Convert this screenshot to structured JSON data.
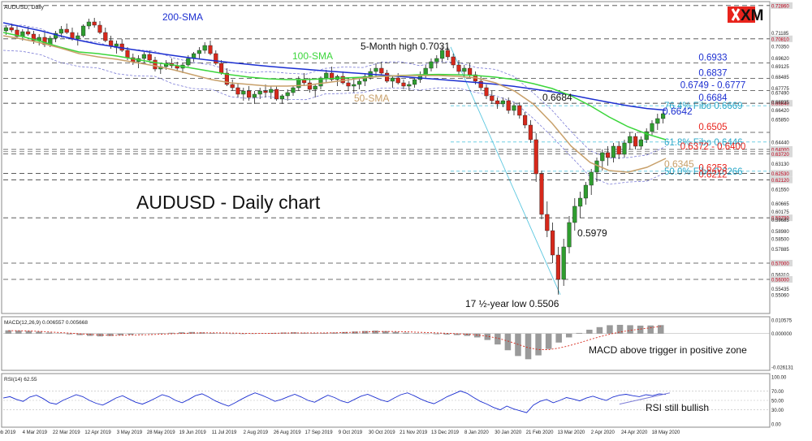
{
  "chart_data": [
    {
      "type": "candlestick",
      "symbol_label": "AUDUSD, Daily",
      "title": "AUDUSD - Daily chart",
      "ylim": [
        0.541,
        0.729
      ],
      "price_ticks": [
        "0.72860",
        "0.71185",
        "0.70810",
        "0.70350",
        "0.69620",
        "0.69125",
        "0.68485",
        "0.67775",
        "0.67490",
        "0.66840",
        "0.66935",
        "0.66420",
        "0.65850",
        "0.64440",
        "0.64000",
        "0.63720",
        "0.63130",
        "0.62530",
        "0.62120",
        "0.61550",
        "0.60665",
        "0.60175",
        "0.59790",
        "0.59685",
        "0.58980",
        "0.58500",
        "0.57885",
        "0.57000",
        "0.56310",
        "0.56000",
        "0.55435",
        "0.55060"
      ],
      "price_ticks_red": [
        "0.72860",
        "0.70810",
        "0.66840",
        "0.64000",
        "0.63720",
        "0.62530",
        "0.62120",
        "0.59790",
        "0.57000",
        "0.56000"
      ],
      "x_ticks": [
        "8 Feb 2019",
        "4 Mar 2019",
        "22 Mar 2019",
        "12 Apr 2019",
        "3 May 2019",
        "28 May 2019",
        "19 Jun 2019",
        "11 Jul 2019",
        "2 Aug 2019",
        "26 Aug 2019",
        "17 Sep 2019",
        "9 Oct 2019",
        "30 Oct 2019",
        "21 Nov 2019",
        "13 Dec 2019",
        "8 Jan 2020",
        "30 Jan 2020",
        "21 Feb 2020",
        "13 Mar 2020",
        "2 Apr 2020",
        "24 Apr 2020",
        "18 May 2020"
      ],
      "candles_ohlc": [
        [
          0.713,
          0.7165,
          0.7105,
          0.715
        ],
        [
          0.715,
          0.7175,
          0.712,
          0.7135
        ],
        [
          0.7135,
          0.716,
          0.708,
          0.7095
        ],
        [
          0.7095,
          0.714,
          0.707,
          0.7125
        ],
        [
          0.7125,
          0.7155,
          0.71,
          0.711
        ],
        [
          0.711,
          0.713,
          0.705,
          0.707
        ],
        [
          0.707,
          0.711,
          0.704,
          0.709
        ],
        [
          0.709,
          0.712,
          0.703,
          0.7045
        ],
        [
          0.7045,
          0.71,
          0.703,
          0.7085
        ],
        [
          0.7085,
          0.713,
          0.706,
          0.7115
        ],
        [
          0.7115,
          0.716,
          0.709,
          0.714
        ],
        [
          0.714,
          0.7175,
          0.711,
          0.712
        ],
        [
          0.712,
          0.715,
          0.707,
          0.708
        ],
        [
          0.708,
          0.712,
          0.704,
          0.71
        ],
        [
          0.71,
          0.717,
          0.709,
          0.716
        ],
        [
          0.716,
          0.7205,
          0.714,
          0.7185
        ],
        [
          0.7185,
          0.721,
          0.715,
          0.7165
        ],
        [
          0.7165,
          0.719,
          0.711,
          0.712
        ],
        [
          0.712,
          0.715,
          0.706,
          0.707
        ],
        [
          0.707,
          0.71,
          0.702,
          0.7035
        ],
        [
          0.7035,
          0.707,
          0.699,
          0.705
        ],
        [
          0.705,
          0.708,
          0.7,
          0.701
        ],
        [
          0.701,
          0.703,
          0.695,
          0.6965
        ],
        [
          0.6965,
          0.699,
          0.692,
          0.694
        ],
        [
          0.694,
          0.698,
          0.69,
          0.696
        ],
        [
          0.696,
          0.7,
          0.693,
          0.6985
        ],
        [
          0.6985,
          0.701,
          0.694,
          0.695
        ],
        [
          0.695,
          0.697,
          0.688,
          0.6895
        ],
        [
          0.6895,
          0.693,
          0.6865,
          0.691
        ],
        [
          0.691,
          0.695,
          0.689,
          0.693
        ],
        [
          0.693,
          0.696,
          0.69,
          0.6915
        ],
        [
          0.6915,
          0.694,
          0.688,
          0.69
        ],
        [
          0.69,
          0.693,
          0.687,
          0.692
        ],
        [
          0.692,
          0.698,
          0.691,
          0.696
        ],
        [
          0.696,
          0.7,
          0.694,
          0.699
        ],
        [
          0.699,
          0.703,
          0.696,
          0.701
        ],
        [
          0.701,
          0.706,
          0.699,
          0.704
        ],
        [
          0.704,
          0.707,
          0.698,
          0.699
        ],
        [
          0.699,
          0.701,
          0.692,
          0.693
        ],
        [
          0.693,
          0.695,
          0.686,
          0.687
        ],
        [
          0.687,
          0.69,
          0.679,
          0.68
        ],
        [
          0.68,
          0.683,
          0.676,
          0.678
        ],
        [
          0.678,
          0.681,
          0.672,
          0.674
        ],
        [
          0.674,
          0.678,
          0.67,
          0.676
        ],
        [
          0.676,
          0.679,
          0.67,
          0.672
        ],
        [
          0.672,
          0.676,
          0.668,
          0.674
        ],
        [
          0.674,
          0.678,
          0.671,
          0.676
        ],
        [
          0.676,
          0.68,
          0.672,
          0.675
        ],
        [
          0.675,
          0.679,
          0.671,
          0.677
        ],
        [
          0.677,
          0.679,
          0.67,
          0.671
        ],
        [
          0.671,
          0.674,
          0.668,
          0.673
        ],
        [
          0.673,
          0.677,
          0.67,
          0.675
        ],
        [
          0.675,
          0.679,
          0.673,
          0.678
        ],
        [
          0.678,
          0.685,
          0.676,
          0.683
        ],
        [
          0.683,
          0.687,
          0.679,
          0.681
        ],
        [
          0.681,
          0.684,
          0.675,
          0.677
        ],
        [
          0.677,
          0.68,
          0.672,
          0.679
        ],
        [
          0.679,
          0.685,
          0.677,
          0.684
        ],
        [
          0.684,
          0.689,
          0.681,
          0.687
        ],
        [
          0.687,
          0.691,
          0.682,
          0.683
        ],
        [
          0.683,
          0.686,
          0.679,
          0.685
        ],
        [
          0.685,
          0.688,
          0.68,
          0.681
        ],
        [
          0.681,
          0.684,
          0.676,
          0.679
        ],
        [
          0.679,
          0.683,
          0.675,
          0.68
        ],
        [
          0.68,
          0.684,
          0.677,
          0.682
        ],
        [
          0.682,
          0.687,
          0.679,
          0.685
        ],
        [
          0.685,
          0.69,
          0.683,
          0.688
        ],
        [
          0.688,
          0.693,
          0.685,
          0.69
        ],
        [
          0.69,
          0.694,
          0.686,
          0.687
        ],
        [
          0.687,
          0.689,
          0.681,
          0.682
        ],
        [
          0.682,
          0.685,
          0.678,
          0.684
        ],
        [
          0.684,
          0.687,
          0.68,
          0.681
        ],
        [
          0.681,
          0.683,
          0.677,
          0.679
        ],
        [
          0.679,
          0.682,
          0.676,
          0.68
        ],
        [
          0.68,
          0.684,
          0.678,
          0.683
        ],
        [
          0.683,
          0.688,
          0.681,
          0.686
        ],
        [
          0.686,
          0.692,
          0.684,
          0.69
        ],
        [
          0.69,
          0.696,
          0.688,
          0.694
        ],
        [
          0.694,
          0.698,
          0.69,
          0.696
        ],
        [
          0.696,
          0.7031,
          0.694,
          0.701
        ],
        [
          0.701,
          0.7031,
          0.695,
          0.697
        ],
        [
          0.697,
          0.699,
          0.69,
          0.692
        ],
        [
          0.692,
          0.695,
          0.686,
          0.688
        ],
        [
          0.688,
          0.692,
          0.685,
          0.69
        ],
        [
          0.69,
          0.693,
          0.684,
          0.686
        ],
        [
          0.686,
          0.688,
          0.68,
          0.682
        ],
        [
          0.682,
          0.685,
          0.676,
          0.678
        ],
        [
          0.678,
          0.68,
          0.671,
          0.673
        ],
        [
          0.673,
          0.676,
          0.668,
          0.67
        ],
        [
          0.67,
          0.672,
          0.665,
          0.668
        ],
        [
          0.668,
          0.672,
          0.666,
          0.67
        ],
        [
          0.67,
          0.672,
          0.662,
          0.664
        ],
        [
          0.664,
          0.669,
          0.661,
          0.667
        ],
        [
          0.667,
          0.669,
          0.659,
          0.661
        ],
        [
          0.661,
          0.663,
          0.653,
          0.655
        ],
        [
          0.655,
          0.658,
          0.644,
          0.646
        ],
        [
          0.646,
          0.65,
          0.62,
          0.625
        ],
        [
          0.625,
          0.627,
          0.597,
          0.6
        ],
        [
          0.6,
          0.608,
          0.586,
          0.59
        ],
        [
          0.59,
          0.595,
          0.57,
          0.575
        ],
        [
          0.575,
          0.58,
          0.5506,
          0.56
        ],
        [
          0.56,
          0.585,
          0.556,
          0.58
        ],
        [
          0.58,
          0.599,
          0.576,
          0.595
        ],
        [
          0.595,
          0.61,
          0.59,
          0.605
        ],
        [
          0.605,
          0.614,
          0.5979,
          0.61
        ],
        [
          0.61,
          0.62,
          0.606,
          0.618
        ],
        [
          0.618,
          0.628,
          0.612,
          0.626
        ],
        [
          0.626,
          0.635,
          0.62,
          0.633
        ],
        [
          0.633,
          0.64,
          0.627,
          0.638
        ],
        [
          0.638,
          0.642,
          0.63,
          0.635
        ],
        [
          0.635,
          0.644,
          0.632,
          0.642
        ],
        [
          0.642,
          0.645,
          0.634,
          0.637
        ],
        [
          0.637,
          0.646,
          0.635,
          0.644
        ],
        [
          0.644,
          0.6505,
          0.64,
          0.648
        ],
        [
          0.648,
          0.65,
          0.64,
          0.642
        ],
        [
          0.642,
          0.648,
          0.64,
          0.646
        ],
        [
          0.646,
          0.653,
          0.644,
          0.651
        ],
        [
          0.651,
          0.658,
          0.649,
          0.656
        ],
        [
          0.656,
          0.662,
          0.652,
          0.659
        ],
        [
          0.659,
          0.6642,
          0.656,
          0.662
        ]
      ],
      "series": [
        {
          "name": "200-SMA",
          "color": "#1c2fd1",
          "values": [
            0.718,
            0.7155,
            0.713,
            0.71,
            0.7072,
            0.7048,
            0.703,
            0.7012,
            0.6995,
            0.6978,
            0.6962,
            0.6948,
            0.6935,
            0.6923,
            0.6912,
            0.6902,
            0.6893,
            0.6884,
            0.6875,
            0.6867,
            0.6858,
            0.6849,
            0.684,
            0.6831,
            0.6822,
            0.6812,
            0.6801,
            0.6788,
            0.6772,
            0.6755,
            0.6735,
            0.6712,
            0.669,
            0.6669,
            0.6652,
            0.6642
          ]
        },
        {
          "name": "100-SMA",
          "color": "#3bd63b",
          "values": [
            0.712,
            0.7095,
            0.7065,
            0.703,
            0.7,
            0.699,
            0.6975,
            0.6955,
            0.6935,
            0.692,
            0.69,
            0.688,
            0.686,
            0.6845,
            0.6835,
            0.683,
            0.683,
            0.6835,
            0.684,
            0.6845,
            0.685,
            0.6855,
            0.686,
            0.6862,
            0.686,
            0.6855,
            0.6845,
            0.683,
            0.6805,
            0.6775,
            0.673,
            0.667,
            0.66,
            0.654,
            0.6495,
            0.646
          ]
        },
        {
          "name": "50-SMA",
          "color": "#c8a06a",
          "values": [
            0.71,
            0.708,
            0.7055,
            0.7025,
            0.699,
            0.697,
            0.6955,
            0.6935,
            0.6915,
            0.689,
            0.686,
            0.683,
            0.681,
            0.68,
            0.679,
            0.679,
            0.6795,
            0.681,
            0.6825,
            0.684,
            0.685,
            0.6855,
            0.6855,
            0.6855,
            0.685,
            0.684,
            0.681,
            0.676,
            0.668,
            0.656,
            0.642,
            0.632,
            0.627,
            0.626,
            0.629,
            0.6345
          ]
        }
      ],
      "levels": [
        {
          "value": 0.6933,
          "label": "0.6933",
          "color": "#1c2fd1"
        },
        {
          "value": 0.6837,
          "label": "0.6837",
          "color": "#1c2fd1"
        },
        {
          "value": 0.6763,
          "label": "0.6749 - 0.6777",
          "color": "#1c2fd1"
        },
        {
          "value": 0.6684,
          "label": "0.6684",
          "color": "#1c2fd1"
        },
        {
          "value": 0.6505,
          "label": "0.6505",
          "color": "#e8231c"
        },
        {
          "value": 0.6386,
          "label": "0.6372 - 0.6400",
          "color": "#e8231c"
        },
        {
          "value": 0.6253,
          "label": "0.6253",
          "color": "#e8231c"
        },
        {
          "value": 0.6212,
          "label": "0.6212",
          "color": "#e8231c"
        }
      ],
      "fibo": [
        {
          "value": 0.6669,
          "label": "76.4% Fibo 0.6669"
        },
        {
          "value": 0.6446,
          "label": "61.8% Fibo 0.6446"
        },
        {
          "value": 0.6266,
          "label": "50.0% Fibo 0.6266"
        }
      ],
      "annotations": {
        "high": "5-Month high 0.7031",
        "low": "17 ½-year low 0.5506",
        "mid_low": "0.5979",
        "top_6684": "0.6684",
        "last_price": "0.6642",
        "sma50_value": "0.6345",
        "sma200_label": "200-SMA",
        "sma100_label": "100-SMA",
        "sma50_label": "50-SMA"
      },
      "brand": "XM"
    },
    {
      "type": "bar",
      "title": "MACD(12,26,9) 0.006557 0.005668",
      "ticks": [
        "0.010575",
        "0.000000",
        "-0.026131"
      ],
      "annotation": "MACD above trigger in positive zone",
      "histogram": [
        0.0025,
        0.0023,
        0.002,
        0.0015,
        0.0008,
        0.0002,
        -0.0006,
        -0.0012,
        -0.0018,
        -0.0022,
        -0.0019,
        -0.0013,
        -0.0009,
        -0.0004,
        0.0,
        0.0003,
        0.0006,
        0.001,
        0.0012,
        0.0009,
        0.0005,
        0.0002,
        -0.0001,
        -0.0004,
        -0.0001,
        0.0002,
        0.0005,
        0.0008,
        0.001,
        0.0006,
        0.0004,
        0.0005,
        0.0008,
        0.0012,
        0.0016,
        0.002,
        0.0023,
        0.0019,
        0.0013,
        0.0007,
        0.0003,
        -0.0002,
        -0.0005,
        -0.0008,
        -0.0012,
        -0.0018,
        -0.003,
        -0.005,
        -0.0085,
        -0.013,
        -0.0175,
        -0.02,
        -0.017,
        -0.012,
        -0.007,
        -0.003,
        0.0005,
        0.003,
        0.005,
        0.0065,
        0.0068,
        0.0065,
        0.0062,
        0.0063,
        0.0066
      ],
      "signal": [
        0.0022,
        0.0022,
        0.002,
        0.0017,
        0.0013,
        0.0008,
        0.0003,
        -0.0002,
        -0.0007,
        -0.0011,
        -0.0013,
        -0.0013,
        -0.0012,
        -0.001,
        -0.0008,
        -0.0005,
        -0.0002,
        0.0001,
        0.0004,
        0.0006,
        0.0006,
        0.0005,
        0.0004,
        0.0002,
        0.0001,
        0.0001,
        0.0002,
        0.0004,
        0.0005,
        0.0005,
        0.0005,
        0.0005,
        0.0006,
        0.0008,
        0.001,
        0.0012,
        0.0015,
        0.0016,
        0.0016,
        0.0014,
        0.0011,
        0.0008,
        0.0005,
        0.0002,
        -0.0001,
        -0.0005,
        -0.0011,
        -0.0021,
        -0.0036,
        -0.0058,
        -0.0085,
        -0.011,
        -0.0125,
        -0.0125,
        -0.0113,
        -0.0095,
        -0.0073,
        -0.0048,
        -0.0025,
        -0.0005,
        0.0012,
        0.0025,
        0.0035,
        0.0045,
        0.0057
      ]
    },
    {
      "type": "line",
      "title": "RSI(14) 62.55",
      "ticks": [
        "100.00",
        "70.00",
        "50.00",
        "30.00",
        "0.00"
      ],
      "annotation": "RSI still bullish",
      "values": [
        55,
        58,
        52,
        48,
        57,
        61,
        54,
        45,
        42,
        50,
        56,
        62,
        58,
        50,
        44,
        40,
        47,
        55,
        60,
        53,
        46,
        42,
        48,
        55,
        62,
        58,
        50,
        45,
        52,
        60,
        64,
        57,
        49,
        43,
        38,
        45,
        53,
        60,
        66,
        61,
        55,
        48,
        52,
        58,
        63,
        57,
        50,
        46,
        54,
        61,
        56,
        49,
        45,
        52,
        59,
        63,
        57,
        51,
        47,
        55,
        62,
        66,
        60,
        53,
        47,
        43,
        50,
        58,
        64,
        70,
        65,
        56,
        48,
        42,
        35,
        30,
        38,
        32,
        28,
        24,
        40,
        48,
        52,
        45,
        50,
        56,
        53,
        49,
        55,
        59,
        54,
        50,
        57,
        61,
        63,
        60,
        58,
        62,
        60,
        64,
        62.55
      ]
    }
  ]
}
